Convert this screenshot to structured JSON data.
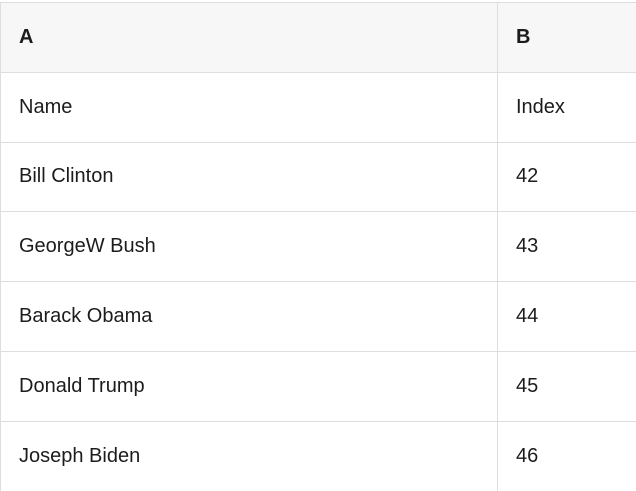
{
  "table": {
    "columns": [
      {
        "label": "A"
      },
      {
        "label": "B"
      }
    ],
    "rows": [
      {
        "a": "Name",
        "b": "Index"
      },
      {
        "a": "Bill Clinton",
        "b": "42"
      },
      {
        "a": "GeorgeW Bush",
        "b": "43"
      },
      {
        "a": "Barack Obama",
        "b": "44"
      },
      {
        "a": "Donald Trump",
        "b": "45"
      },
      {
        "a": "Joseph Biden",
        "b": "46"
      }
    ]
  },
  "colors": {
    "header_bg": "#f7f7f7",
    "border": "#dedede",
    "text": "#1c1c1c"
  }
}
